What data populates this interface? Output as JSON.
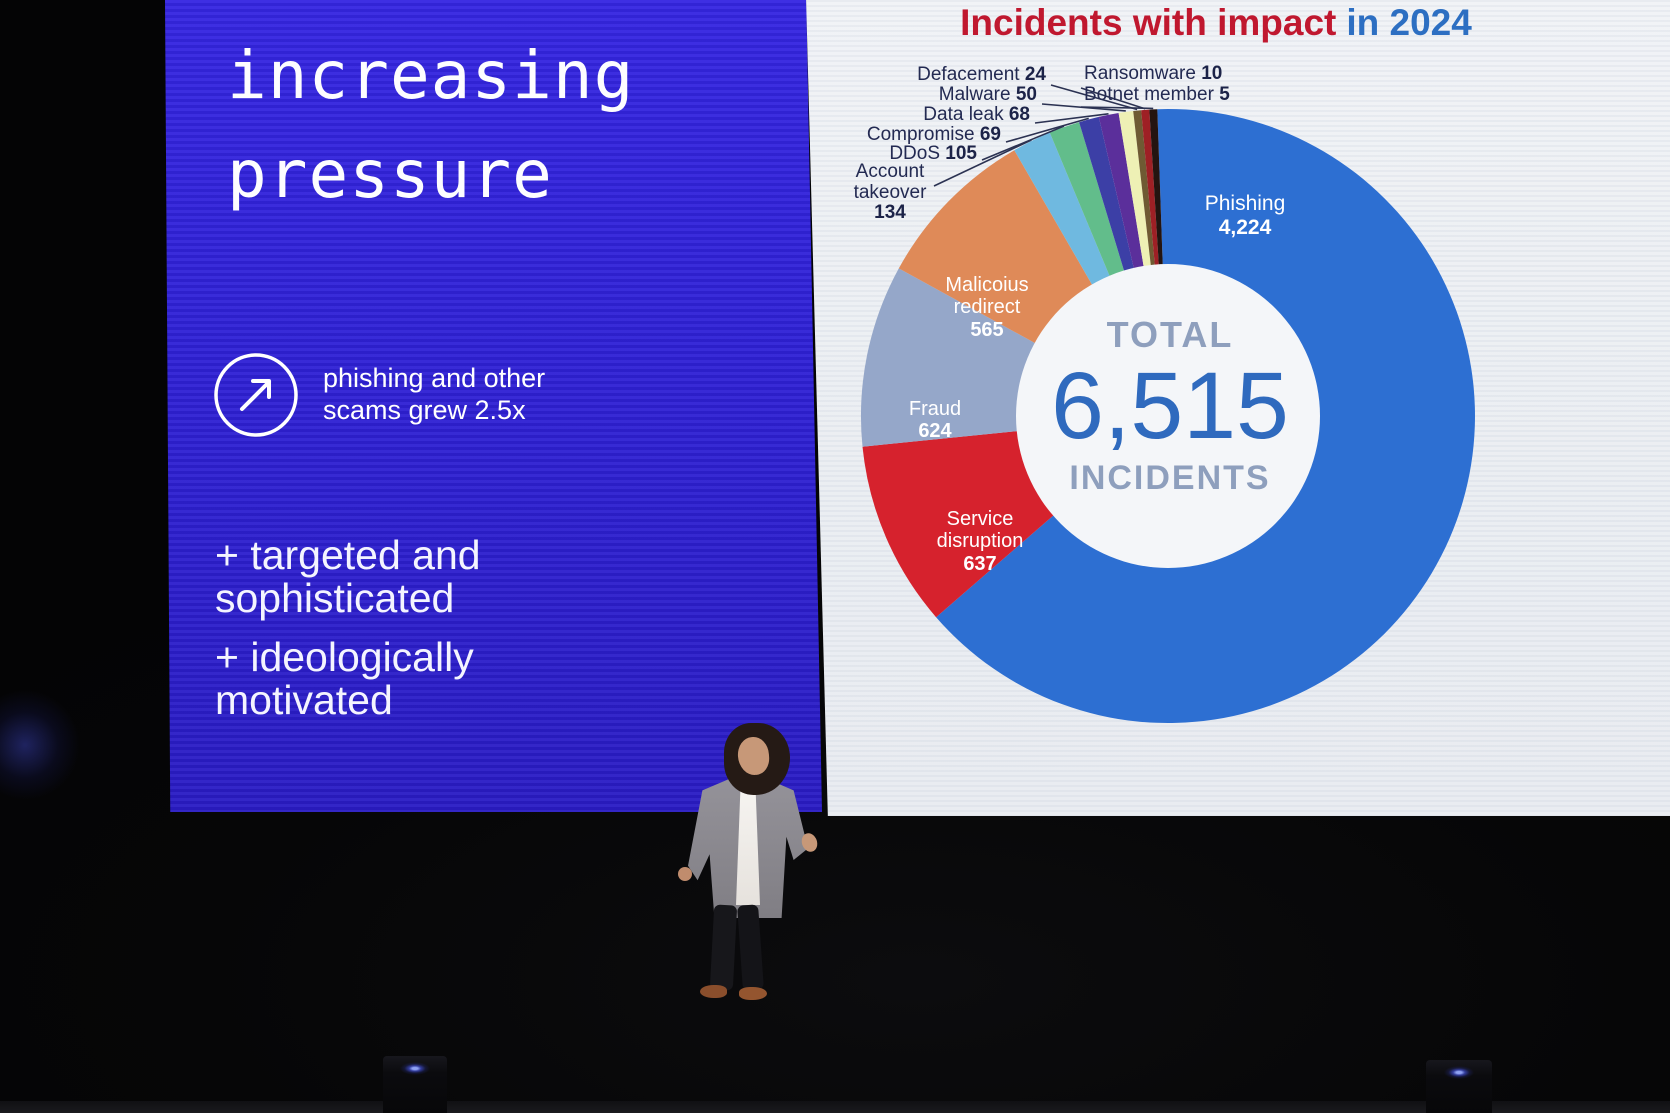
{
  "left_slide": {
    "title": "increasing pressure",
    "growth_stat": "phishing and other scams grew 2.5x",
    "bullet_1": "+ targeted and sophisticated",
    "bullet_2": "+ ideologically motivated"
  },
  "right_slide": {
    "title_red": "Incidents with impact",
    "title_blue": "in 2024"
  },
  "chart_data": {
    "type": "pie",
    "donut": true,
    "title": "Incidents with impact in 2024",
    "total": 6515,
    "total_label_top": "TOTAL",
    "total_value": "6,515",
    "total_label_bottom": "INCIDENTS",
    "legend_position": "callout-labels-around-donut",
    "slices": [
      {
        "label": "Phishing",
        "value": 4224,
        "display": "4,224",
        "color": "#2d6fd2"
      },
      {
        "label": "Service disruption",
        "value": 637,
        "display": "637",
        "color": "#d6222d"
      },
      {
        "label": "Fraud",
        "value": 624,
        "display": "624",
        "color": "#95a7c9"
      },
      {
        "label": "Malicoius redirect",
        "value": 565,
        "display": "565",
        "color": "#df8a58"
      },
      {
        "label": "Account takeover",
        "value": 134,
        "display": "134",
        "color": "#6fb9e0"
      },
      {
        "label": "DDoS",
        "value": 105,
        "display": "105",
        "color": "#62bd8b"
      },
      {
        "label": "Compromise",
        "value": 69,
        "display": "69",
        "color": "#3c3fa6"
      },
      {
        "label": "Data leak",
        "value": 68,
        "display": "68",
        "color": "#5b2f9b"
      },
      {
        "label": "Malware",
        "value": 50,
        "display": "50",
        "color": "#eef0b5"
      },
      {
        "label": "Defacement",
        "value": 24,
        "display": "24",
        "color": "#6f5a33"
      },
      {
        "label": "Ransomware",
        "value": 10,
        "display": "10",
        "color": "#9e2025"
      },
      {
        "label": "Botnet member",
        "value": 5,
        "display": "5",
        "color": "#241410"
      }
    ]
  },
  "colors": {
    "slide_blue": "#2f21d5",
    "title_red": "#c0182f",
    "title_blue": "#2d6fc2",
    "center_value_blue": "#2f6abe",
    "center_label_gray": "#8e9fbd",
    "callout_text_navy": "#232a52",
    "screen_white": "#eceff3"
  }
}
